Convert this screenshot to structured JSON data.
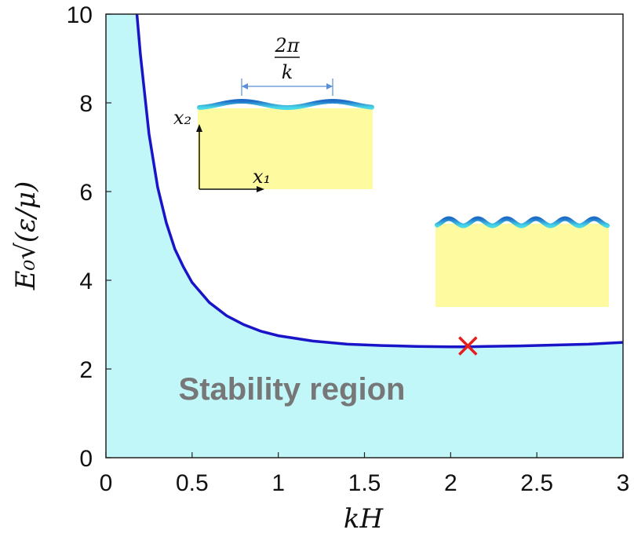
{
  "chart_data": {
    "type": "area",
    "xlabel": "kH",
    "ylabel": "E₀√(ε/μ)",
    "xlim": [
      0,
      3
    ],
    "ylim": [
      0,
      10
    ],
    "x_ticks": [
      "0",
      "0.5",
      "1",
      "1.5",
      "2",
      "2.5",
      "3"
    ],
    "y_ticks": [
      "0",
      "2",
      "4",
      "6",
      "8",
      "10"
    ],
    "grid": false,
    "series": [
      {
        "x": [
          0.18,
          0.2,
          0.25,
          0.3,
          0.35,
          0.4,
          0.45,
          0.5,
          0.6,
          0.7,
          0.8,
          0.9,
          1.0,
          1.2,
          1.4,
          1.6,
          1.8,
          2.0,
          2.1,
          2.2,
          2.4,
          2.6,
          2.8,
          3.0
        ],
        "y": [
          10.0,
          9.1,
          7.3,
          6.1,
          5.3,
          4.7,
          4.3,
          3.95,
          3.5,
          3.2,
          3.0,
          2.85,
          2.75,
          2.63,
          2.56,
          2.53,
          2.51,
          2.5,
          2.5,
          2.51,
          2.52,
          2.54,
          2.56,
          2.6
        ]
      }
    ],
    "marker": {
      "x": 2.1,
      "y": 2.52,
      "symbol": "×"
    },
    "annotations": {
      "region_label": "Stability region",
      "inset_wavelength_num": "2π",
      "inset_wavelength_den": "k",
      "inset_axis_x": "x₁",
      "inset_axis_y": "x₂"
    },
    "colors": {
      "curve": "#1a14c8",
      "fill": "#c2f7fa",
      "marker": "#e81c1c",
      "substrate": "#fdfaa0",
      "film_dark": "#1f6fc8",
      "film_light": "#49d8e8",
      "region_text": "#777777",
      "dimension_arrow": "#5b8fd8"
    }
  }
}
